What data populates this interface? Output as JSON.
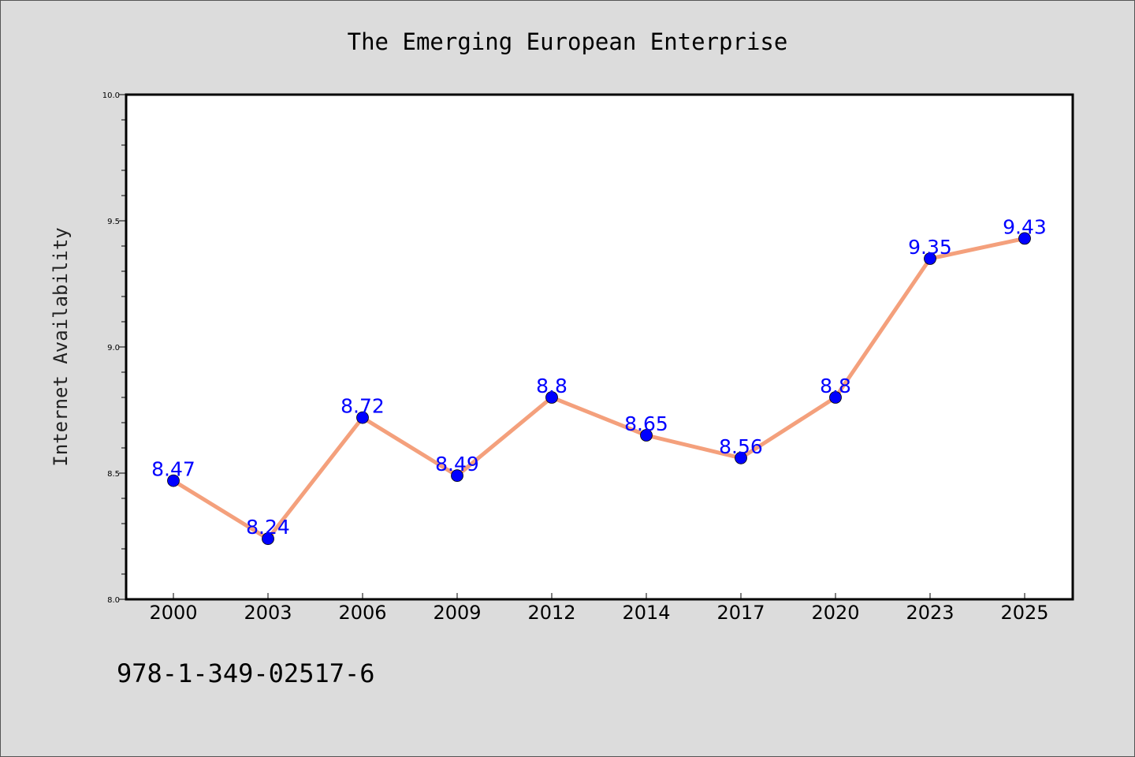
{
  "chart_data": {
    "type": "line",
    "title": "The Emerging European Enterprise",
    "xlabel": "",
    "ylabel": "Internet Availability",
    "categories": [
      "2000",
      "2003",
      "2006",
      "2009",
      "2012",
      "2014",
      "2017",
      "2020",
      "2023",
      "2025"
    ],
    "series": [
      {
        "values": [
          8.47,
          8.24,
          8.72,
          8.49,
          8.8,
          8.65,
          8.56,
          8.8,
          9.35,
          9.43
        ],
        "data_labels": [
          "8.47",
          "8.24",
          "8.72",
          "8.49",
          "8.8",
          "8.65",
          "8.56",
          "8.8",
          "9.35",
          "9.43"
        ]
      }
    ],
    "ylim": [
      8.0,
      10.0
    ],
    "yticks": [
      "8.0",
      "8.5",
      "9.0",
      "9.5",
      "10.0"
    ],
    "grid": false,
    "colors": {
      "line": "#f4a07c",
      "marker": "#0000ff",
      "label": "#0000ff",
      "background": "#dcdcdc",
      "plot_background": "#ffffff"
    }
  },
  "footnote": "978-1-349-02517-6"
}
